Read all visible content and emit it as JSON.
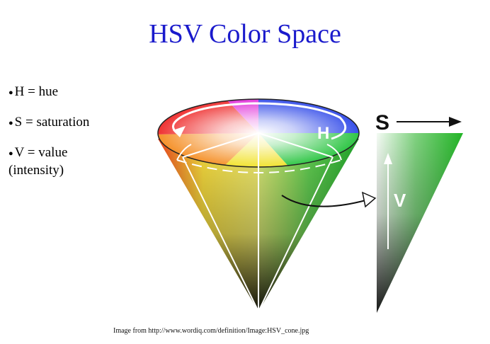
{
  "title": "HSV Color Space",
  "bullets": [
    {
      "text": "H = hue",
      "cont": ""
    },
    {
      "text": "S = saturation",
      "cont": ""
    },
    {
      "text": "V = value",
      "cont": "(intensity)"
    }
  ],
  "diagram": {
    "hue_label": "H",
    "saturation_label": "S",
    "value_label": "V"
  },
  "caption": "Image from http://www.wordiq.com/definition/Image:HSV_cone.jpg",
  "colors": {
    "title": "#1a1acc",
    "accent_green": "#22b526"
  }
}
